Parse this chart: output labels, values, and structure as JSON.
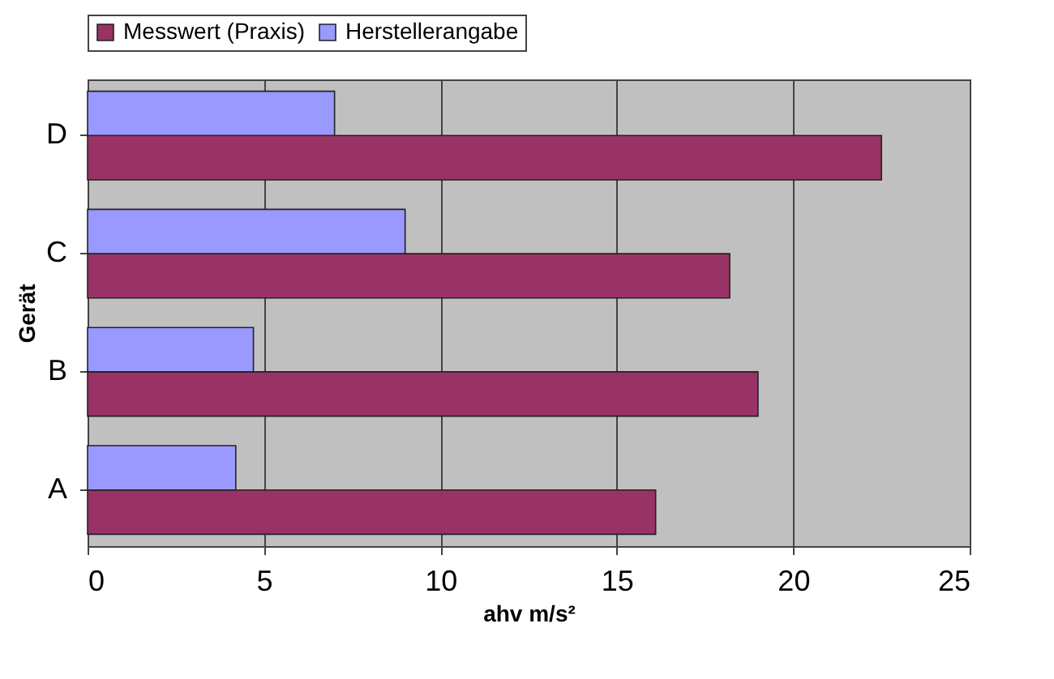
{
  "chart_data": {
    "type": "bar",
    "orientation": "horizontal",
    "xlabel": "ahv m/s²",
    "ylabel": "Gerät",
    "categories": [
      "D",
      "C",
      "B",
      "A"
    ],
    "series": [
      {
        "name": "Messwert (Praxis)",
        "color": "#993366",
        "values": [
          22.5,
          18.2,
          19.0,
          16.1
        ]
      },
      {
        "name": "Herstellerangabe",
        "color": "#9999ff",
        "values": [
          7.0,
          9.0,
          4.7,
          4.2
        ]
      }
    ],
    "xlim": [
      0,
      25
    ],
    "xticks": [
      0,
      5,
      10,
      15,
      20,
      25
    ],
    "grid": "x",
    "legend": "top"
  }
}
